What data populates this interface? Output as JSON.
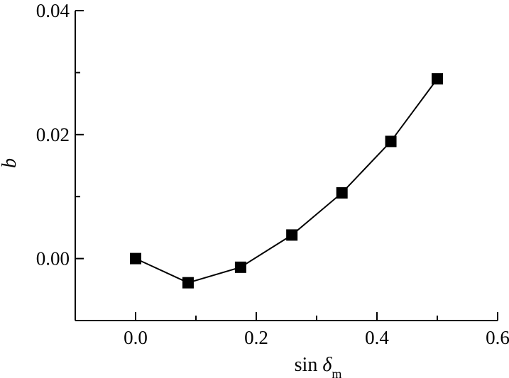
{
  "chart_data": {
    "type": "line",
    "title": "",
    "xlabel": {
      "main": "sin ",
      "symbol": "δ",
      "subscript": "m"
    },
    "ylabel": "b",
    "xlim": [
      -0.1,
      0.6
    ],
    "ylim": [
      -0.01,
      0.04
    ],
    "x_ticks": [
      {
        "value": 0.0,
        "label": "0.0"
      },
      {
        "value": 0.2,
        "label": "0.2"
      },
      {
        "value": 0.4,
        "label": "0.4"
      },
      {
        "value": 0.6,
        "label": "0.6"
      }
    ],
    "y_ticks": [
      {
        "value": 0.0,
        "label": "0.00"
      },
      {
        "value": 0.02,
        "label": "0.02"
      },
      {
        "value": 0.04,
        "label": "0.04"
      }
    ],
    "x_minor_ticks": [
      -0.1,
      0.1,
      0.3,
      0.5
    ],
    "y_minor_ticks": [
      -0.01,
      0.01,
      0.03
    ],
    "grid": false,
    "legend": "none",
    "series": [
      {
        "marker": "square",
        "color": "#000000",
        "x": [
          0.0,
          0.087,
          0.174,
          0.259,
          0.342,
          0.423,
          0.5
        ],
        "y": [
          0.0,
          -0.0039,
          -0.0014,
          0.0038,
          0.0106,
          0.0189,
          0.029
        ]
      }
    ]
  }
}
